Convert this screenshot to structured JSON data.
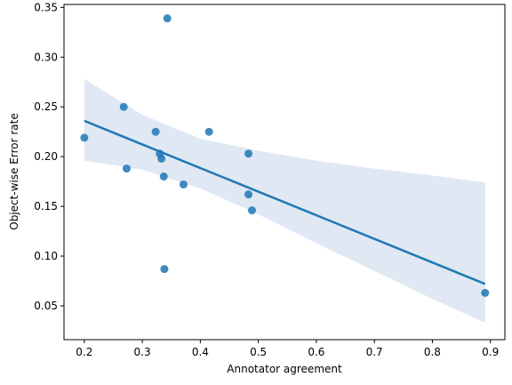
{
  "chart_data": {
    "type": "scatter",
    "title": "",
    "xlabel": "Annotator agreement",
    "ylabel": "Object-wise Error rate",
    "xlim": [
      0.165,
      0.925
    ],
    "ylim": [
      0.016,
      0.353
    ],
    "xticks": [
      0.2,
      0.3,
      0.4,
      0.5,
      0.6,
      0.7,
      0.8,
      0.9
    ],
    "xtick_labels": [
      "0.2",
      "0.3",
      "0.4",
      "0.5",
      "0.6",
      "0.7",
      "0.8",
      "0.9"
    ],
    "yticks": [
      0.05,
      0.1,
      0.15,
      0.2,
      0.25,
      0.3,
      0.35
    ],
    "ytick_labels": [
      "0.05",
      "0.10",
      "0.15",
      "0.20",
      "0.25",
      "0.30",
      "0.35"
    ],
    "grid": false,
    "points": {
      "x": [
        0.343,
        0.268,
        0.2,
        0.323,
        0.415,
        0.33,
        0.333,
        0.483,
        0.273,
        0.337,
        0.371,
        0.483,
        0.489,
        0.338,
        0.891
      ],
      "y": [
        0.339,
        0.25,
        0.219,
        0.225,
        0.225,
        0.203,
        0.198,
        0.203,
        0.188,
        0.18,
        0.172,
        0.162,
        0.146,
        0.087,
        0.063
      ]
    },
    "regression": {
      "x": [
        0.2,
        0.891
      ],
      "y": [
        0.236,
        0.072
      ]
    },
    "confidence_band": {
      "x": [
        0.2,
        0.3,
        0.4,
        0.5,
        0.6,
        0.7,
        0.8,
        0.891
      ],
      "upper": [
        0.278,
        0.242,
        0.218,
        0.206,
        0.196,
        0.188,
        0.181,
        0.174
      ],
      "lower": [
        0.196,
        0.187,
        0.168,
        0.142,
        0.113,
        0.085,
        0.057,
        0.033
      ]
    },
    "colors": {
      "points": "#1f77b4",
      "line": "#1f77b4",
      "band": "#dfe8f3"
    }
  }
}
